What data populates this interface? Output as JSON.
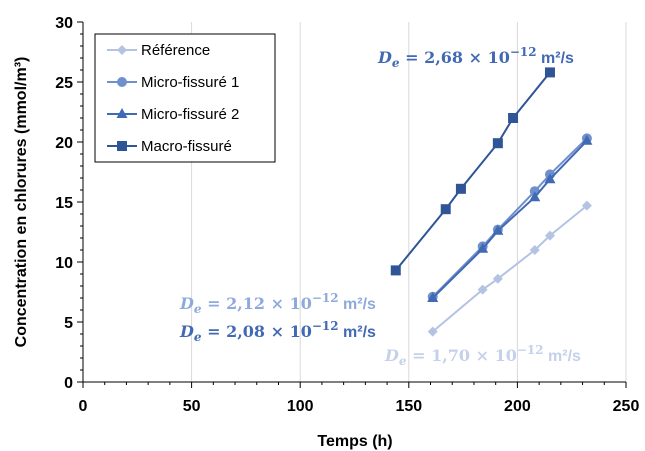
{
  "chart_data": {
    "type": "line",
    "xlabel": "Temps (h)",
    "ylabel": "Concentration en chlorures (mmol/m³)",
    "xlim": [
      0,
      250
    ],
    "ylim": [
      0,
      30
    ],
    "xticks": [
      0,
      50,
      100,
      150,
      200,
      250
    ],
    "yticks": [
      0,
      5,
      10,
      15,
      20,
      25,
      30
    ],
    "grid": "vertical",
    "legend_position": "top-left",
    "series": [
      {
        "name": "Référence",
        "marker": "diamond",
        "color": "#B4C3E4",
        "x": [
          161,
          184,
          191,
          208,
          215,
          232
        ],
        "y": [
          4.2,
          7.7,
          8.6,
          11.0,
          12.2,
          14.7
        ]
      },
      {
        "name": "Micro-fissuré 1",
        "marker": "circle",
        "color": "#6F8FCD",
        "x": [
          161,
          184,
          191,
          208,
          215,
          232
        ],
        "y": [
          7.1,
          11.3,
          12.7,
          15.9,
          17.3,
          20.3
        ]
      },
      {
        "name": "Micro-fissuré 2",
        "marker": "triangle",
        "color": "#4169B4",
        "x": [
          161,
          184,
          191,
          208,
          215,
          232
        ],
        "y": [
          7.0,
          11.1,
          12.6,
          15.4,
          16.9,
          20.1
        ]
      },
      {
        "name": "Macro-fissuré",
        "marker": "square",
        "color": "#2F5597",
        "x": [
          144,
          167,
          174,
          191,
          198,
          215
        ],
        "y": [
          9.3,
          14.4,
          16.1,
          19.9,
          22.0,
          25.8
        ]
      }
    ],
    "annotations": [
      {
        "sym": "D",
        "sub": "e",
        "value": " = 2,68 × 10",
        "exp": "−12",
        "unit": " m²/s",
        "color": "#4169B4"
      },
      {
        "sym": "D",
        "sub": "e",
        "value": " = 2,12 × 10",
        "exp": "−12",
        "unit": " m²/s",
        "color": "#8EA9DB"
      },
      {
        "sym": "D",
        "sub": "e",
        "value": " = 2,08 × 10",
        "exp": "−12",
        "unit": " m²/s",
        "color": "#4169B4"
      },
      {
        "sym": "D",
        "sub": "e",
        "value": " = 1,70 × 10",
        "exp": "−12",
        "unit": " m²/s",
        "color": "#C5D0EA"
      }
    ]
  }
}
